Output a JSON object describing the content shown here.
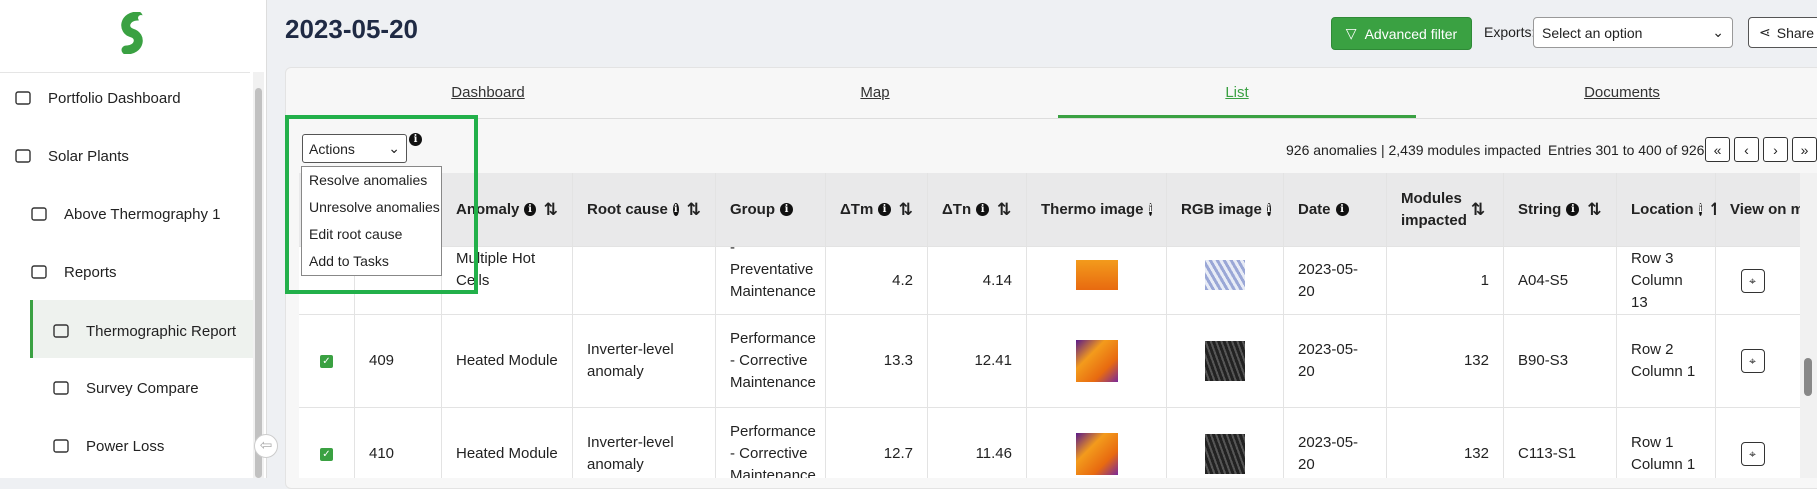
{
  "sidebar": {
    "items": [
      "Portfolio Dashboard",
      "Solar Plants",
      "Above Thermography 1",
      "Reports",
      "Thermographic Report",
      "Survey Compare",
      "Power Loss"
    ]
  },
  "header": {
    "title": "2023-05-20",
    "advanced_filter": "Advanced filter",
    "exports_label": "Exports:",
    "exports_select": "Select an option",
    "share": "Share"
  },
  "tabs": [
    "Dashboard",
    "Map",
    "List",
    "Documents"
  ],
  "actions": {
    "select": "Actions",
    "menu": [
      "Resolve anomalies",
      "Unresolve anomalies",
      "Edit root cause",
      "Add to Tasks"
    ]
  },
  "summary": "926 anomalies | 2,439 modules impacted",
  "entries": "Entries 301 to 400 of 926",
  "pagination": [
    "«",
    "‹",
    "›",
    "»"
  ],
  "table": {
    "columns": [
      "Anomaly",
      "Root cause",
      "Group",
      "ΔTm",
      "ΔTn",
      "Thermo image",
      "RGB image",
      "Date",
      "Modules impacted",
      "String",
      "Location",
      "View on map"
    ],
    "rows": [
      {
        "anomaly": "Multiple Hot Cells",
        "group": "- Preventative Maintenance",
        "dtm": 4.2,
        "dtn": 4.14,
        "date": "2023-05-20",
        "modules": 1,
        "string": "A04-S5",
        "location": "Row 3 Column 13"
      },
      {
        "id": 409,
        "anomaly": "Heated Module",
        "root_cause": "Inverter-level anomaly",
        "group": "Performance - Corrective Maintenance",
        "dtm": 13.3,
        "dtn": 12.41,
        "date": "2023-05-20",
        "modules": 132,
        "string": "B90-S3",
        "location": "Row 2 Column 1"
      },
      {
        "id": 410,
        "anomaly": "Heated Module",
        "root_cause": "Inverter-level anomaly",
        "group": "Performance - Corrective Maintenance",
        "dtm": 12.7,
        "dtn": 11.46,
        "date": "2023-05-20",
        "modules": 132,
        "string": "C113-S1",
        "location": "Row 1 Column 1"
      }
    ]
  }
}
